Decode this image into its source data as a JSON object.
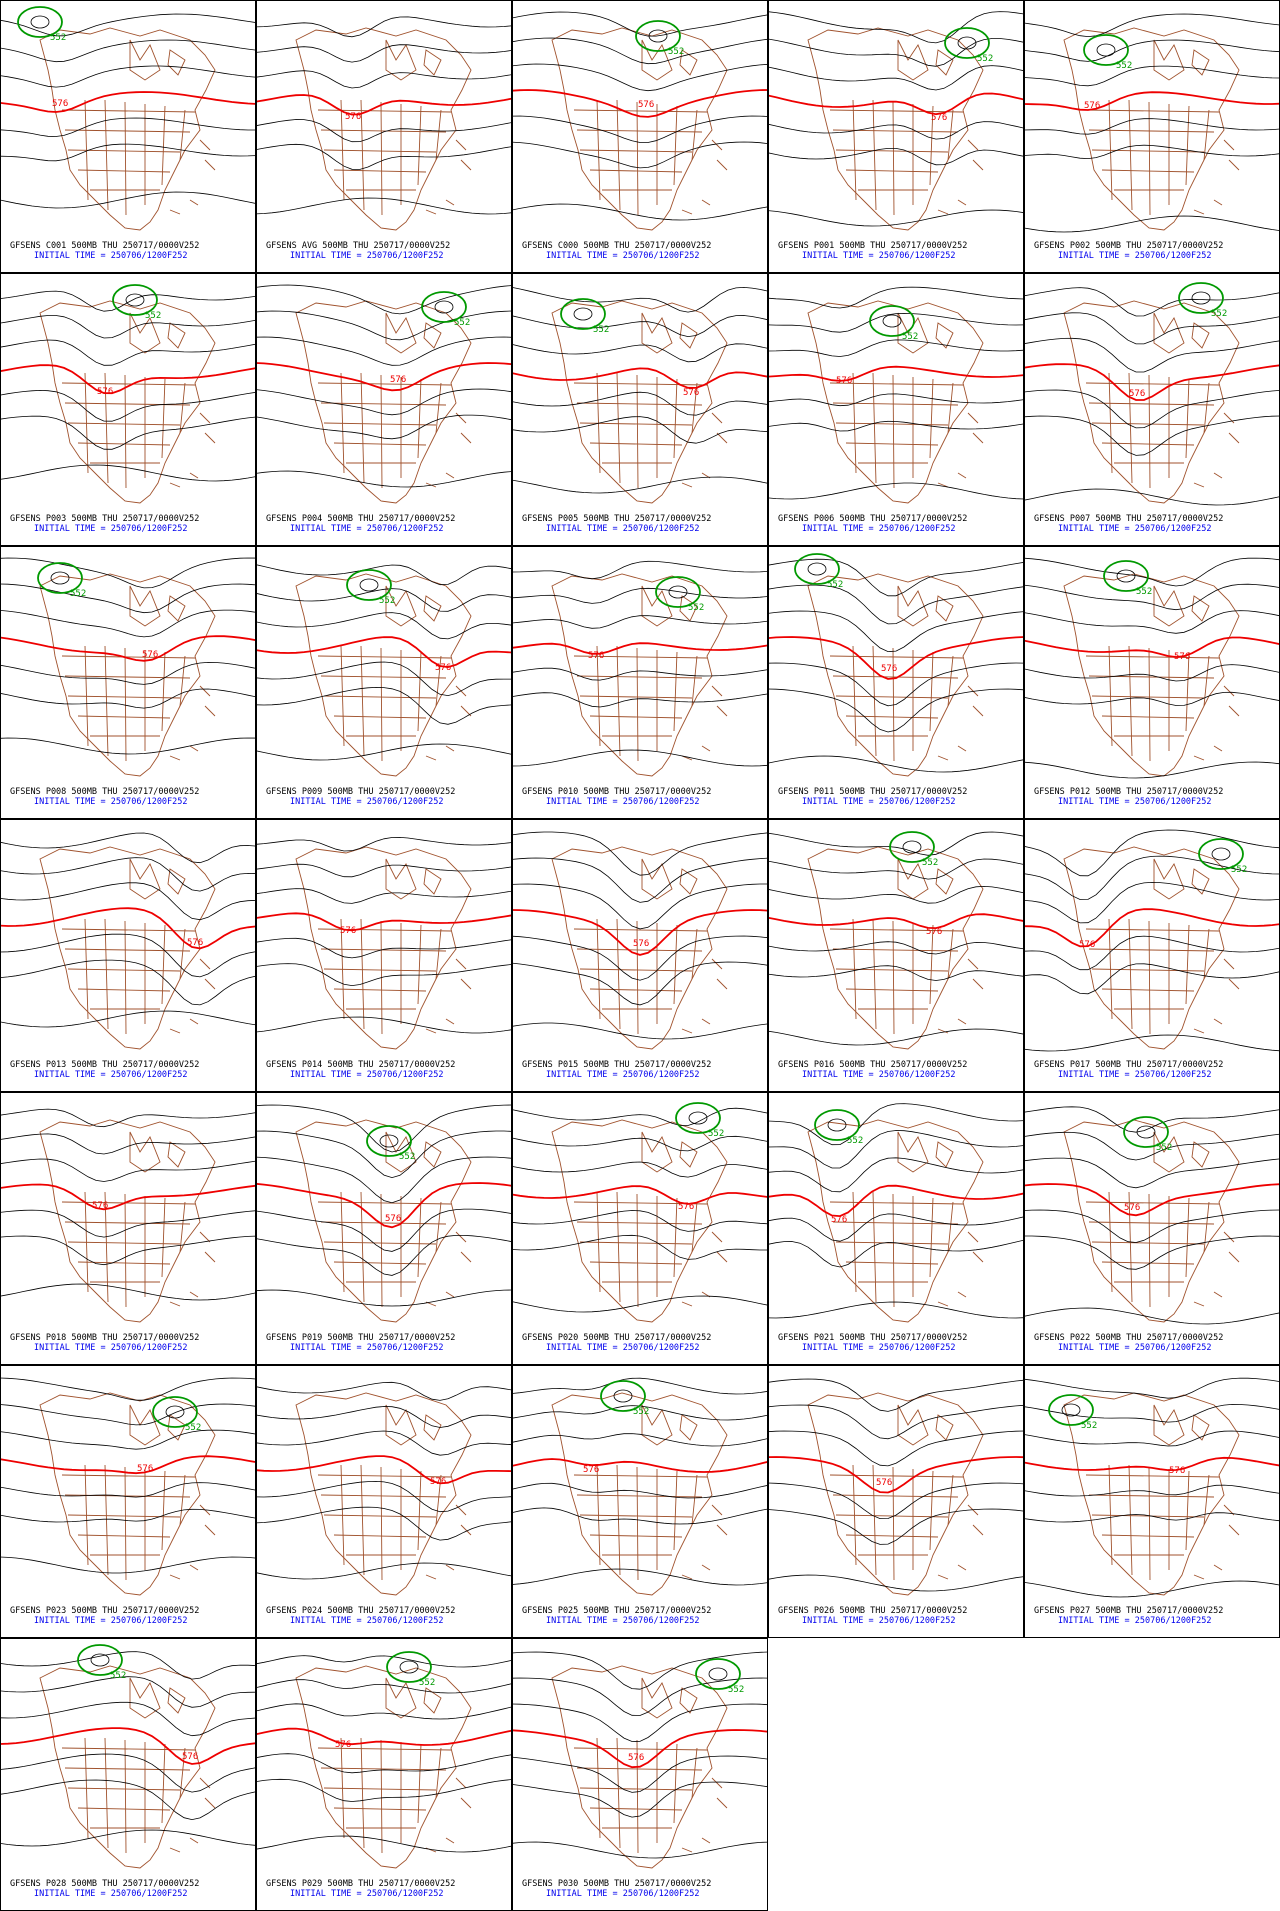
{
  "panels": [
    {
      "title": "GFSENS C001 500MB THU 250717/0000V252",
      "init": "INITIAL TIME = 250706/1200F252",
      "contour_labels": [
        "576",
        "552"
      ]
    },
    {
      "title": "GFSENS AVG 500MB THU 250717/0000V252",
      "init": "INITIAL TIME = 250706/1200F252",
      "contour_labels": [
        "576"
      ]
    },
    {
      "title": "GFSENS C000 500MB THU 250717/0000V252",
      "init": "INITIAL TIME = 250706/1200F252",
      "contour_labels": [
        "576",
        "552"
      ]
    },
    {
      "title": "GFSENS P001 500MB THU 250717/0000V252",
      "init": "INITIAL TIME = 250706/1200F252",
      "contour_labels": [
        "576",
        "552"
      ]
    },
    {
      "title": "GFSENS P002 500MB THU 250717/0000V252",
      "init": "INITIAL TIME = 250706/1200F252",
      "contour_labels": [
        "576",
        "552"
      ]
    },
    {
      "title": "GFSENS P003 500MB THU 250717/0000V252",
      "init": "INITIAL TIME = 250706/1200F252",
      "contour_labels": [
        "576",
        "552"
      ]
    },
    {
      "title": "GFSENS P004 500MB THU 250717/0000V252",
      "init": "INITIAL TIME = 250706/1200F252",
      "contour_labels": [
        "576",
        "552"
      ]
    },
    {
      "title": "GFSENS P005 500MB THU 250717/0000V252",
      "init": "INITIAL TIME = 250706/1200F252",
      "contour_labels": [
        "576",
        "552"
      ]
    },
    {
      "title": "GFSENS P006 500MB THU 250717/0000V252",
      "init": "INITIAL TIME = 250706/1200F252",
      "contour_labels": [
        "576",
        "552"
      ]
    },
    {
      "title": "GFSENS P007 500MB THU 250717/0000V252",
      "init": "INITIAL TIME = 250706/1200F252",
      "contour_labels": [
        "576",
        "552"
      ]
    },
    {
      "title": "GFSENS P008 500MB THU 250717/0000V252",
      "init": "INITIAL TIME = 250706/1200F252",
      "contour_labels": [
        "576",
        "552"
      ]
    },
    {
      "title": "GFSENS P009 500MB THU 250717/0000V252",
      "init": "INITIAL TIME = 250706/1200F252",
      "contour_labels": [
        "576",
        "552"
      ]
    },
    {
      "title": "GFSENS P010 500MB THU 250717/0000V252",
      "init": "INITIAL TIME = 250706/1200F252",
      "contour_labels": [
        "576",
        "552"
      ]
    },
    {
      "title": "GFSENS P011 500MB THU 250717/0000V252",
      "init": "INITIAL TIME = 250706/1200F252",
      "contour_labels": [
        "576",
        "552"
      ]
    },
    {
      "title": "GFSENS P012 500MB THU 250717/0000V252",
      "init": "INITIAL TIME = 250706/1200F252",
      "contour_labels": [
        "576",
        "552"
      ]
    },
    {
      "title": "GFSENS P013 500MB THU 250717/0000V252",
      "init": "INITIAL TIME = 250706/1200F252",
      "contour_labels": [
        "576"
      ]
    },
    {
      "title": "GFSENS P014 500MB THU 250717/0000V252",
      "init": "INITIAL TIME = 250706/1200F252",
      "contour_labels": [
        "576"
      ]
    },
    {
      "title": "GFSENS P015 500MB THU 250717/0000V252",
      "init": "INITIAL TIME = 250706/1200F252",
      "contour_labels": [
        "576"
      ]
    },
    {
      "title": "GFSENS P016 500MB THU 250717/0000V252",
      "init": "INITIAL TIME = 250706/1200F252",
      "contour_labels": [
        "576",
        "552"
      ]
    },
    {
      "title": "GFSENS P017 500MB THU 250717/0000V252",
      "init": "INITIAL TIME = 250706/1200F252",
      "contour_labels": [
        "576",
        "552"
      ]
    },
    {
      "title": "GFSENS P018 500MB THU 250717/0000V252",
      "init": "INITIAL TIME = 250706/1200F252",
      "contour_labels": [
        "576"
      ]
    },
    {
      "title": "GFSENS P019 500MB THU 250717/0000V252",
      "init": "INITIAL TIME = 250706/1200F252",
      "contour_labels": [
        "576",
        "552"
      ]
    },
    {
      "title": "GFSENS P020 500MB THU 250717/0000V252",
      "init": "INITIAL TIME = 250706/1200F252",
      "contour_labels": [
        "576",
        "552"
      ]
    },
    {
      "title": "GFSENS P021 500MB THU 250717/0000V252",
      "init": "INITIAL TIME = 250706/1200F252",
      "contour_labels": [
        "576",
        "552"
      ]
    },
    {
      "title": "GFSENS P022 500MB THU 250717/0000V252",
      "init": "INITIAL TIME = 250706/1200F252",
      "contour_labels": [
        "576",
        "552"
      ]
    },
    {
      "title": "GFSENS P023 500MB THU 250717/0000V252",
      "init": "INITIAL TIME = 250706/1200F252",
      "contour_labels": [
        "576",
        "552"
      ]
    },
    {
      "title": "GFSENS P024 500MB THU 250717/0000V252",
      "init": "INITIAL TIME = 250706/1200F252",
      "contour_labels": [
        "576"
      ]
    },
    {
      "title": "GFSENS P025 500MB THU 250717/0000V252",
      "init": "INITIAL TIME = 250706/1200F252",
      "contour_labels": [
        "576",
        "552"
      ]
    },
    {
      "title": "GFSENS P026 500MB THU 250717/0000V252",
      "init": "INITIAL TIME = 250706/1200F252",
      "contour_labels": [
        "576"
      ]
    },
    {
      "title": "GFSENS P027 500MB THU 250717/0000V252",
      "init": "INITIAL TIME = 250706/1200F252",
      "contour_labels": [
        "576",
        "552"
      ]
    },
    {
      "title": "GFSENS P028 500MB THU 250717/0000V252",
      "init": "INITIAL TIME = 250706/1200F252",
      "contour_labels": [
        "576",
        "552"
      ]
    },
    {
      "title": "GFSENS P029 500MB THU 250717/0000V252",
      "init": "INITIAL TIME = 250706/1200F252",
      "contour_labels": [
        "576",
        "552"
      ]
    },
    {
      "title": "GFSENS P030 500MB THU 250717/0000V252",
      "init": "INITIAL TIME = 250706/1200F252",
      "contour_labels": [
        "576",
        "552"
      ]
    }
  ]
}
